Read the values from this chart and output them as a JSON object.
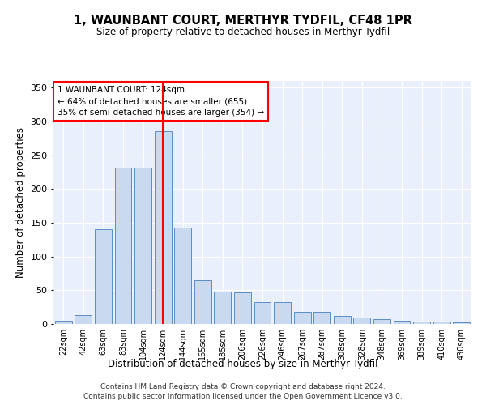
{
  "title": "1, WAUNBANT COURT, MERTHYR TYDFIL, CF48 1PR",
  "subtitle": "Size of property relative to detached houses in Merthyr Tydfil",
  "xlabel": "Distribution of detached houses by size in Merthyr Tydfil",
  "ylabel": "Number of detached properties",
  "bar_color": "#c9d9f0",
  "bar_edge_color": "#5b8ec4",
  "background_color": "#eaf0fb",
  "categories": [
    "22sqm",
    "42sqm",
    "63sqm",
    "83sqm",
    "104sqm",
    "124sqm",
    "144sqm",
    "165sqm",
    "185sqm",
    "206sqm",
    "226sqm",
    "246sqm",
    "267sqm",
    "287sqm",
    "308sqm",
    "328sqm",
    "348sqm",
    "369sqm",
    "389sqm",
    "410sqm",
    "430sqm"
  ],
  "values": [
    5,
    13,
    140,
    232,
    232,
    286,
    143,
    65,
    48,
    47,
    32,
    32,
    18,
    18,
    12,
    10,
    7,
    5,
    4,
    4,
    3
  ],
  "red_line_index": 5,
  "annotation_title": "1 WAUNBANT COURT: 124sqm",
  "annotation_line1": "← 64% of detached houses are smaller (655)",
  "annotation_line2": "35% of semi-detached houses are larger (354) →",
  "footer_line1": "Contains HM Land Registry data © Crown copyright and database right 2024.",
  "footer_line2": "Contains public sector information licensed under the Open Government Licence v3.0.",
  "ylim": [
    0,
    360
  ],
  "yticks": [
    0,
    50,
    100,
    150,
    200,
    250,
    300,
    350
  ]
}
